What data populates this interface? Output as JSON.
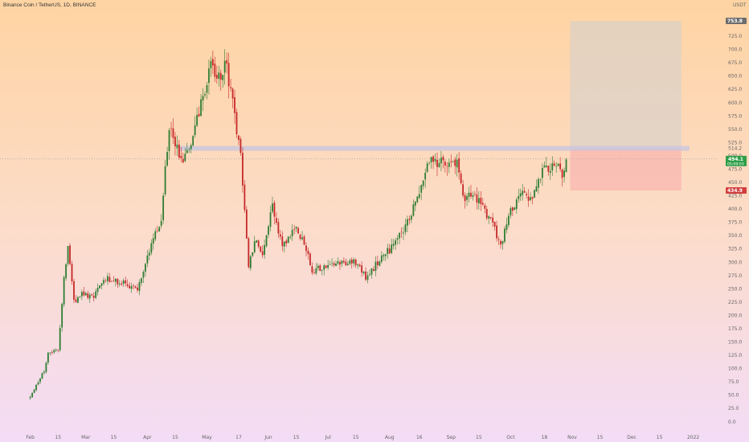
{
  "chart_data": {
    "type": "candlestick",
    "title": "Binance Coin / TetherUS, 1D, BINANCE",
    "currency": "USDT",
    "x_tick_labels": [
      "Feb",
      "15",
      "Mar",
      "15",
      "Apr",
      "15",
      "May",
      "17",
      "Jun",
      "15",
      "Jul",
      "15",
      "Aug",
      "16",
      "Sep",
      "15",
      "Oct",
      "18",
      "Nov",
      "15",
      "Dec",
      "15",
      "2022"
    ],
    "x_tick_dates": [
      "2021-02-01",
      "2021-02-15",
      "2021-03-01",
      "2021-03-15",
      "2021-04-01",
      "2021-04-15",
      "2021-05-01",
      "2021-05-17",
      "2021-06-01",
      "2021-06-15",
      "2021-07-01",
      "2021-07-15",
      "2021-08-01",
      "2021-08-16",
      "2021-09-01",
      "2021-09-15",
      "2021-10-01",
      "2021-10-18",
      "2021-11-01",
      "2021-11-15",
      "2021-12-01",
      "2021-12-15",
      "2022-01-01"
    ],
    "ylim": [
      -20,
      775
    ],
    "y_ticks": [
      0,
      25,
      50,
      75,
      100,
      125,
      150,
      175,
      200,
      225,
      250,
      275,
      300,
      325,
      350,
      375,
      400,
      425,
      450,
      475,
      500,
      525,
      550,
      575,
      600,
      625,
      650,
      675,
      700,
      725
    ],
    "y_tick_labels": [
      "0.0",
      "25.0",
      "50.0",
      "75.0",
      "100.0",
      "125.0",
      "150.0",
      "175.0",
      "200.0",
      "225.0",
      "250.0",
      "275.0",
      "300.0",
      "325.0",
      "350.0",
      "375.0",
      "400.0",
      "425.0",
      "450.0",
      "475.0",
      "500.0",
      "525.0",
      "550.0",
      "575.0",
      "600.0",
      "625.0",
      "650.0",
      "675.0",
      "700.0",
      "725.0"
    ],
    "keypoints": [
      [
        "2021-02-01",
        48
      ],
      [
        "2021-02-08",
        95
      ],
      [
        "2021-02-10",
        130
      ],
      [
        "2021-02-15",
        135
      ],
      [
        "2021-02-18",
        270
      ],
      [
        "2021-02-20",
        335
      ],
      [
        "2021-02-23",
        225
      ],
      [
        "2021-02-27",
        240
      ],
      [
        "2021-03-05",
        235
      ],
      [
        "2021-03-10",
        270
      ],
      [
        "2021-03-20",
        260
      ],
      [
        "2021-03-27",
        250
      ],
      [
        "2021-04-03",
        330
      ],
      [
        "2021-04-08",
        385
      ],
      [
        "2021-04-12",
        560
      ],
      [
        "2021-04-15",
        520
      ],
      [
        "2021-04-18",
        490
      ],
      [
        "2021-04-24",
        530
      ],
      [
        "2021-04-28",
        600
      ],
      [
        "2021-05-03",
        665
      ],
      [
        "2021-05-08",
        640
      ],
      [
        "2021-05-10",
        680
      ],
      [
        "2021-05-14",
        600
      ],
      [
        "2021-05-18",
        500
      ],
      [
        "2021-05-22",
        290
      ],
      [
        "2021-05-25",
        340
      ],
      [
        "2021-05-29",
        320
      ],
      [
        "2021-06-03",
        410
      ],
      [
        "2021-06-08",
        330
      ],
      [
        "2021-06-15",
        365
      ],
      [
        "2021-06-20",
        325
      ],
      [
        "2021-06-23",
        280
      ],
      [
        "2021-06-27",
        290
      ],
      [
        "2021-07-05",
        300
      ],
      [
        "2021-07-15",
        300
      ],
      [
        "2021-07-20",
        270
      ],
      [
        "2021-07-28",
        310
      ],
      [
        "2021-08-03",
        330
      ],
      [
        "2021-08-10",
        375
      ],
      [
        "2021-08-15",
        420
      ],
      [
        "2021-08-21",
        490
      ],
      [
        "2021-08-28",
        485
      ],
      [
        "2021-09-04",
        490
      ],
      [
        "2021-09-07",
        420
      ],
      [
        "2021-09-13",
        425
      ],
      [
        "2021-09-21",
        375
      ],
      [
        "2021-09-26",
        335
      ],
      [
        "2021-09-30",
        385
      ],
      [
        "2021-10-06",
        435
      ],
      [
        "2021-10-12",
        420
      ],
      [
        "2021-10-15",
        460
      ],
      [
        "2021-10-20",
        480
      ],
      [
        "2021-10-23",
        485
      ],
      [
        "2021-10-25",
        480
      ],
      [
        "2021-10-27",
        450
      ],
      [
        "2021-10-29",
        494
      ]
    ],
    "horizontal_level": 514.2,
    "current_price": 494.1,
    "current_countdown": "05:09:03",
    "position_tool": {
      "start": "2021-10-31",
      "end": "2021-12-26",
      "entry": 514.2,
      "target": 753.8,
      "stop": 434.9
    },
    "price_labels": {
      "target": "753.8",
      "level": "514.2",
      "current": "494.1",
      "countdown": "05:09:03",
      "stop": "434.9"
    },
    "colors": {
      "up": "#2e7d32",
      "down": "#c62828",
      "level_band": "#c9c6de",
      "profit_zone": "#cfcfcf",
      "loss_zone": "#f8b6b0",
      "current_tag": "#2e9e48",
      "stop_tag": "#d23f40",
      "target_tag": "#6d6d6d"
    }
  }
}
